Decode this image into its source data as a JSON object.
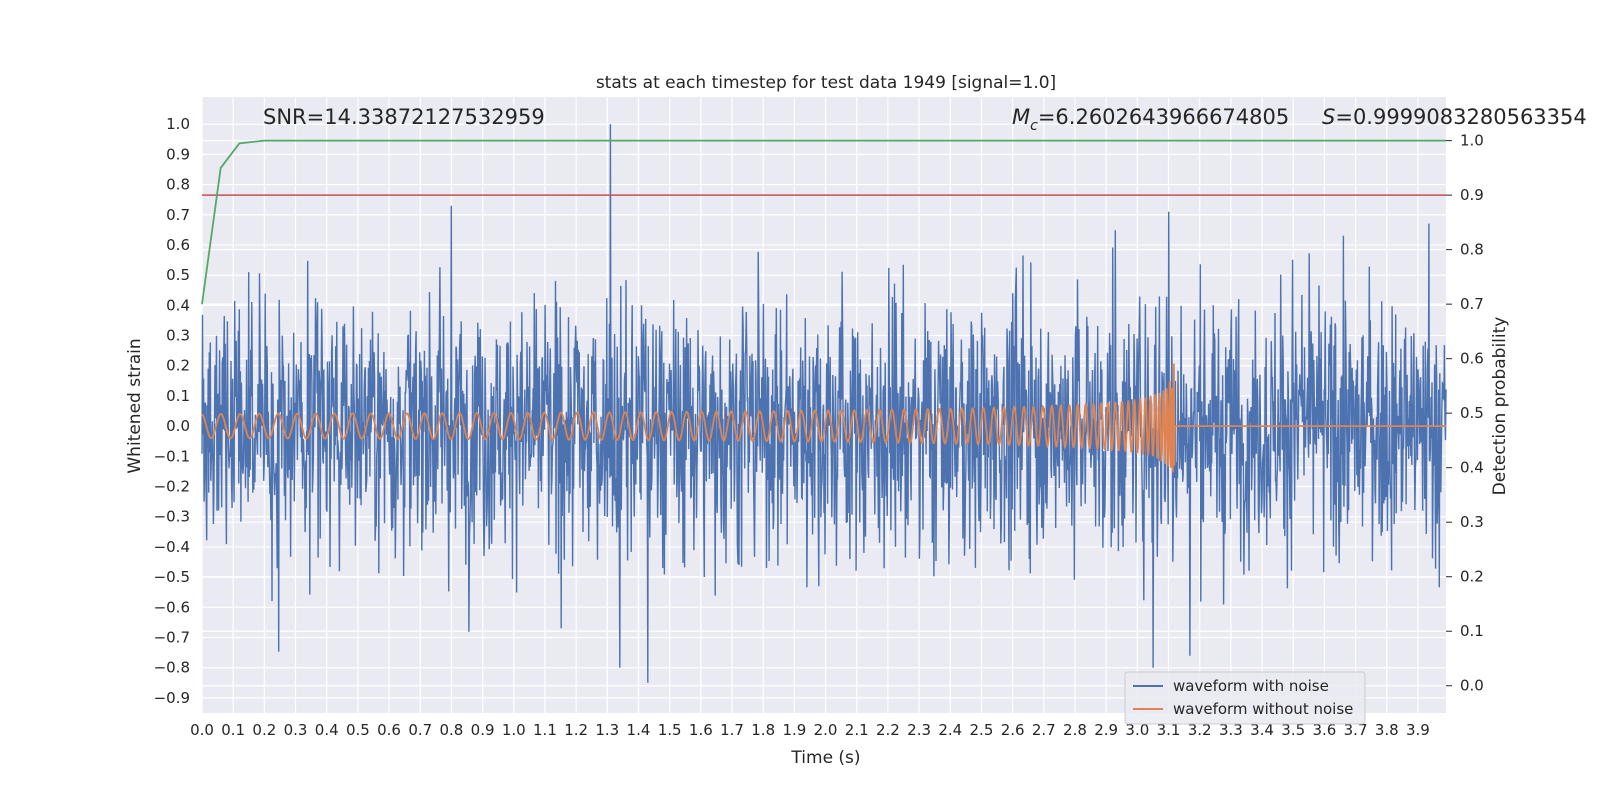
{
  "chart_data": {
    "type": "line",
    "title": "stats at each timestep for test data 1949 [signal=1.0]",
    "xlabel": "Time (s)",
    "ylabel": "Whitened strain",
    "y2label": "Detection probability",
    "xlim": [
      0.0,
      3.99
    ],
    "ylim": [
      -0.95,
      1.09
    ],
    "y2lim": [
      -0.05,
      1.08
    ],
    "x_ticks": [
      "0.0",
      "0.1",
      "0.2",
      "0.3",
      "0.4",
      "0.5",
      "0.6",
      "0.7",
      "0.8",
      "0.9",
      "1.0",
      "1.1",
      "1.2",
      "1.3",
      "1.4",
      "1.5",
      "1.6",
      "1.7",
      "1.8",
      "1.9",
      "2.0",
      "2.1",
      "2.2",
      "2.3",
      "2.4",
      "2.5",
      "2.6",
      "2.7",
      "2.8",
      "2.9",
      "3.0",
      "3.1",
      "3.2",
      "3.3",
      "3.4",
      "3.5",
      "3.6",
      "3.7",
      "3.8",
      "3.9"
    ],
    "y_ticks": [
      "1.0",
      "0.9",
      "0.8",
      "0.7",
      "0.6",
      "0.5",
      "0.4",
      "0.3",
      "0.2",
      "0.1",
      "0.0",
      "−0.1",
      "−0.2",
      "−0.3",
      "−0.4",
      "−0.5",
      "−0.6",
      "−0.7",
      "−0.8",
      "−0.9"
    ],
    "y2_ticks": [
      "1.0",
      "0.9",
      "0.8",
      "0.7",
      "0.6",
      "0.5",
      "0.4",
      "0.3",
      "0.2",
      "0.1",
      "0.0"
    ],
    "annotations": {
      "snr": "SNR=14.33872127532959",
      "mc_symbol": "M",
      "mc_sub": "c",
      "mc_value": "=6.2602643966674805",
      "s_symbol": "S",
      "s_value": "=0.9999083280563354"
    },
    "threshold": {
      "axis": "y2",
      "value": 0.9
    },
    "noisy_waveform": {
      "merger_time": 3.12,
      "notable_peaks": [
        {
          "x": 1.31,
          "y": 1.0
        },
        {
          "x": 0.8,
          "y": 0.73
        },
        {
          "x": 3.1,
          "y": 0.71
        },
        {
          "x": 1.43,
          "y": -0.85
        },
        {
          "x": 1.34,
          "y": -0.8
        },
        {
          "x": 3.05,
          "y": -0.8
        }
      ]
    },
    "clean_waveform": {
      "start_amplitude": 0.04,
      "peak_amplitude": 0.31,
      "merger_time": 3.12,
      "post_merger_value": 0.0
    },
    "probability": {
      "x": [
        0.0,
        0.06,
        0.12,
        0.2,
        0.3,
        1.0,
        2.0,
        3.0,
        3.99
      ],
      "y": [
        0.7,
        0.95,
        0.995,
        1.0,
        1.0,
        1.0,
        1.0,
        1.0,
        1.0
      ]
    },
    "series": [
      {
        "name": "waveform with noise",
        "color": "#4c72b0"
      },
      {
        "name": "waveform without noise",
        "color": "#dd8452"
      }
    ],
    "probability_color": "#55a868",
    "threshold_color": "#c44e52",
    "background_color": "#eaeaf2",
    "grid": true,
    "legend_position": "bottom-right"
  }
}
